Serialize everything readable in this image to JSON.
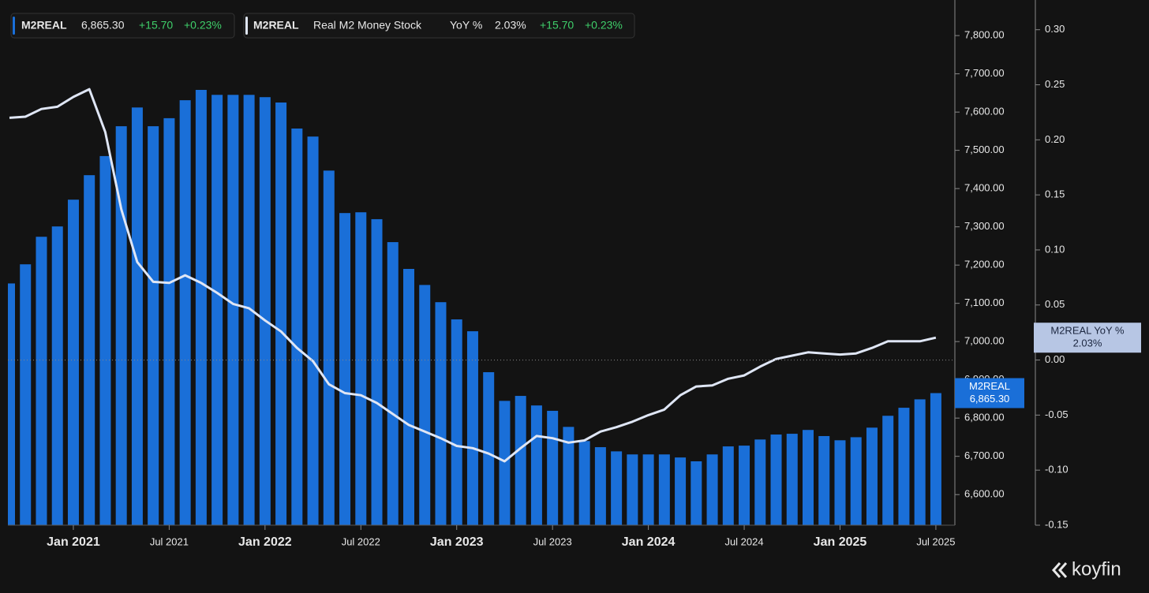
{
  "chart_data": {
    "type": "bar",
    "x": [
      "2020-09",
      "2020-10",
      "2020-11",
      "2020-12",
      "2021-01",
      "2021-02",
      "2021-03",
      "2021-04",
      "2021-05",
      "2021-06",
      "2021-07",
      "2021-08",
      "2021-09",
      "2021-10",
      "2021-11",
      "2021-12",
      "2022-01",
      "2022-02",
      "2022-03",
      "2022-04",
      "2022-05",
      "2022-06",
      "2022-07",
      "2022-08",
      "2022-09",
      "2022-10",
      "2022-11",
      "2022-12",
      "2023-01",
      "2023-02",
      "2023-03",
      "2023-04",
      "2023-05",
      "2023-06",
      "2023-07",
      "2023-08",
      "2023-09",
      "2023-10",
      "2023-11",
      "2023-12",
      "2024-01",
      "2024-02",
      "2024-03",
      "2024-04",
      "2024-05",
      "2024-06",
      "2024-07",
      "2024-08",
      "2024-09",
      "2024-10",
      "2024-11",
      "2024-12",
      "2025-01",
      "2025-02",
      "2025-03",
      "2025-04",
      "2025-05",
      "2025-06",
      "2025-07"
    ],
    "series": [
      {
        "name": "M2REAL",
        "type": "bar",
        "color": "#1a6fd8",
        "values": [
          7152,
          7202,
          7274,
          7301,
          7371,
          7435,
          7485,
          7563,
          7612,
          7563,
          7584,
          7631,
          7658,
          7645,
          7645,
          7645,
          7639,
          7625,
          7557,
          7536,
          7447,
          7336,
          7338,
          7320,
          7260,
          7190,
          7148,
          7103,
          7058,
          7027,
          6920,
          6845,
          6858,
          6833,
          6819,
          6777,
          6740,
          6724,
          6713,
          6705,
          6705,
          6705,
          6697,
          6687,
          6705,
          6726,
          6728,
          6744,
          6757,
          6759,
          6769,
          6753,
          6742,
          6750,
          6775,
          6806,
          6827,
          6849,
          6865.3
        ],
        "value_labels": [
          null,
          null,
          null,
          null,
          null,
          null,
          null,
          null,
          null,
          null,
          null,
          null,
          null,
          null,
          null,
          null,
          null,
          null,
          null,
          null,
          null,
          null,
          null,
          null,
          null,
          null,
          null,
          null,
          null,
          null,
          null,
          null,
          null,
          null,
          null,
          null,
          null,
          null,
          null,
          null,
          null,
          null,
          null,
          null,
          null,
          null,
          null,
          null,
          null,
          null,
          null,
          null,
          null,
          null,
          null,
          null,
          null,
          null,
          "6,865.30"
        ]
      },
      {
        "name": "M2REAL YoY %",
        "type": "line",
        "axis": "y2",
        "color": "#dfe6f5",
        "values": [
          0.22,
          0.221,
          0.228,
          0.23,
          0.239,
          0.246,
          0.207,
          0.137,
          0.089,
          0.071,
          0.07,
          0.077,
          0.07,
          0.061,
          0.051,
          0.047,
          0.036,
          0.026,
          0.011,
          -0.001,
          -0.022,
          -0.03,
          -0.032,
          -0.039,
          -0.049,
          -0.059,
          -0.065,
          -0.071,
          -0.078,
          -0.08,
          -0.085,
          -0.092,
          -0.08,
          -0.069,
          -0.071,
          -0.075,
          -0.073,
          -0.065,
          -0.061,
          -0.056,
          -0.05,
          -0.045,
          -0.032,
          -0.024,
          -0.023,
          -0.017,
          -0.014,
          -0.006,
          0.001,
          0.004,
          0.007,
          0.006,
          0.005,
          0.006,
          0.011,
          0.017,
          0.017,
          0.017,
          0.0203
        ],
        "value_labels": [
          null,
          null,
          null,
          null,
          null,
          null,
          null,
          null,
          null,
          null,
          null,
          null,
          null,
          null,
          null,
          null,
          null,
          null,
          null,
          null,
          null,
          null,
          null,
          null,
          null,
          null,
          null,
          null,
          null,
          null,
          null,
          null,
          null,
          null,
          null,
          null,
          null,
          null,
          null,
          null,
          null,
          null,
          null,
          null,
          null,
          null,
          null,
          null,
          null,
          null,
          null,
          null,
          null,
          null,
          null,
          null,
          null,
          null,
          "2.03%"
        ]
      }
    ],
    "legend": [
      {
        "ticker": "M2REAL",
        "change": "+15.70",
        "change_pct": "+0.23%"
      },
      {
        "ticker": "M2REAL",
        "description": "Real M2 Money Stock",
        "measure": "YoY %",
        "change": "+15.70",
        "change_pct": "+0.23%"
      }
    ],
    "ylim": [
      6520,
      7893
    ],
    "yticks": [
      {
        "value": 6600,
        "label": "6,600.00"
      },
      {
        "value": 6700,
        "label": "6,700.00"
      },
      {
        "value": 6800,
        "label": "6,800.00"
      },
      {
        "value": 6900,
        "label": "6,900.00"
      },
      {
        "value": 7000,
        "label": "7,000.00"
      },
      {
        "value": 7100,
        "label": "7,100.00"
      },
      {
        "value": 7200,
        "label": "7,200.00"
      },
      {
        "value": 7300,
        "label": "7,300.00"
      },
      {
        "value": 7400,
        "label": "7,400.00"
      },
      {
        "value": 7500,
        "label": "7,500.00"
      },
      {
        "value": 7600,
        "label": "7,600.00"
      },
      {
        "value": 7700,
        "label": "7,700.00"
      },
      {
        "value": 7800,
        "label": "7,800.00"
      }
    ],
    "y2lim": [
      -0.15,
      0.327
    ],
    "y2ticks": [
      {
        "value": -0.15,
        "label": "-0.15"
      },
      {
        "value": -0.1,
        "label": "-0.10"
      },
      {
        "value": -0.05,
        "label": "-0.05"
      },
      {
        "value": 0,
        "label": "0.00"
      },
      {
        "value": 0.05,
        "label": "0.05"
      },
      {
        "value": 0.1,
        "label": "0.10"
      },
      {
        "value": 0.15,
        "label": "0.15"
      },
      {
        "value": 0.2,
        "label": "0.20"
      },
      {
        "value": 0.25,
        "label": "0.25"
      },
      {
        "value": 0.3,
        "label": "0.30"
      }
    ],
    "xticks": [
      {
        "value": "2021-01",
        "label": "Jan 2021"
      },
      {
        "value": "2021-07",
        "label": "Jul 2021"
      },
      {
        "value": "2022-01",
        "label": "Jan 2022"
      },
      {
        "value": "2022-07",
        "label": "Jul 2022"
      },
      {
        "value": "2023-01",
        "label": "Jan 2023"
      },
      {
        "value": "2023-07",
        "label": "Jul 2023"
      },
      {
        "value": "2024-01",
        "label": "Jan 2024"
      },
      {
        "value": "2024-07",
        "label": "Jul 2024"
      },
      {
        "value": "2025-01",
        "label": "Jan 2025"
      },
      {
        "value": "2025-07",
        "label": "Jul 2025"
      }
    ],
    "zero_line": true,
    "watermark": "koyfin"
  }
}
